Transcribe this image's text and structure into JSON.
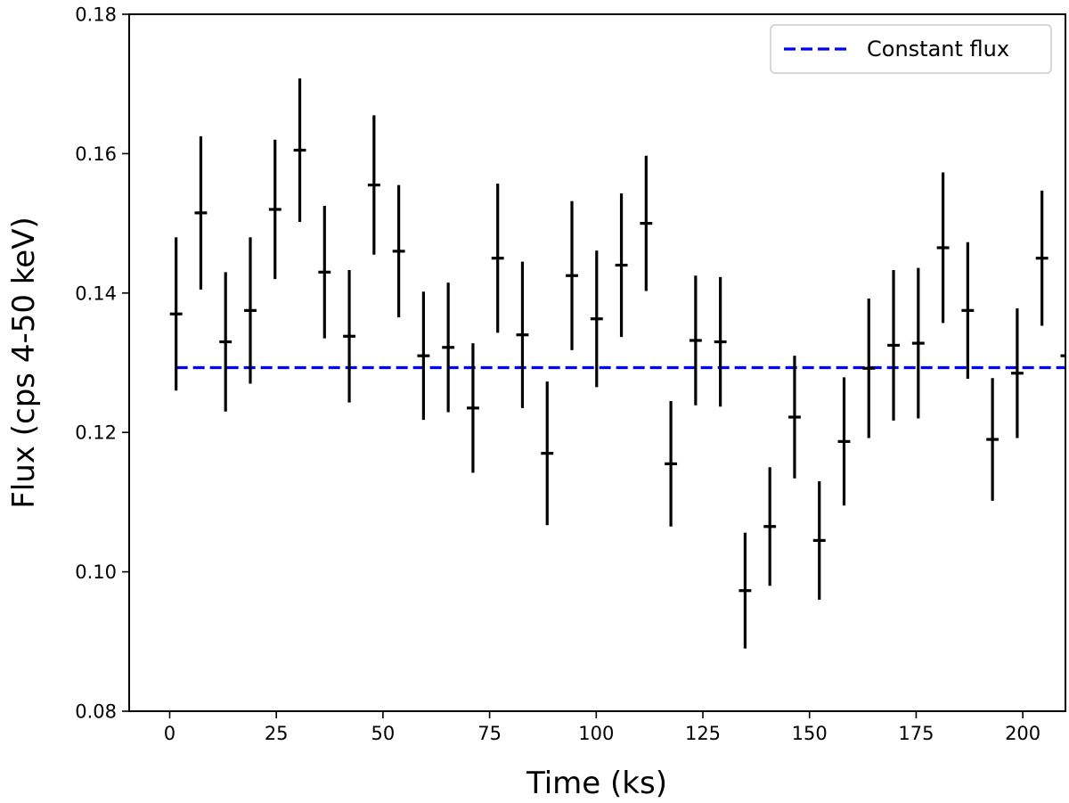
{
  "chart_data": {
    "type": "scatter",
    "title": "",
    "xlabel": "Time (ks)",
    "ylabel": "Flux (cps 4-50 keV)",
    "xlim": [
      -9.5,
      210
    ],
    "ylim": [
      0.08,
      0.18
    ],
    "xticks": [
      0,
      25,
      50,
      75,
      100,
      125,
      150,
      175,
      200
    ],
    "xtick_labels": [
      "0",
      "25",
      "50",
      "75",
      "100",
      "125",
      "150",
      "175",
      "200"
    ],
    "yticks": [
      0.08,
      0.1,
      0.12,
      0.14,
      0.16,
      0.18
    ],
    "ytick_labels": [
      "0.08",
      "0.10",
      "0.12",
      "0.14",
      "0.16",
      "0.18"
    ],
    "grid": false,
    "legend": {
      "position": "top-right",
      "entries": [
        "Constant flux"
      ]
    },
    "colors": {
      "data": "#000000",
      "constant": "#0000ff"
    },
    "series": [
      {
        "kind": "errorbar",
        "x_halfwidth": 1.45,
        "points": [
          {
            "x": 1.5,
            "y": 0.137,
            "err": 0.011
          },
          {
            "x": 7.3,
            "y": 0.1515,
            "err": 0.011
          },
          {
            "x": 13.1,
            "y": 0.133,
            "err": 0.01
          },
          {
            "x": 18.9,
            "y": 0.1375,
            "err": 0.0105
          },
          {
            "x": 24.7,
            "y": 0.152,
            "err": 0.01
          },
          {
            "x": 30.5,
            "y": 0.1605,
            "err": 0.0103
          },
          {
            "x": 36.3,
            "y": 0.143,
            "err": 0.0095
          },
          {
            "x": 42.1,
            "y": 0.1338,
            "err": 0.0095
          },
          {
            "x": 47.9,
            "y": 0.1555,
            "err": 0.01
          },
          {
            "x": 53.7,
            "y": 0.146,
            "err": 0.0095
          },
          {
            "x": 59.5,
            "y": 0.131,
            "err": 0.0092
          },
          {
            "x": 65.3,
            "y": 0.1322,
            "err": 0.0093
          },
          {
            "x": 71.1,
            "y": 0.1235,
            "err": 0.0093
          },
          {
            "x": 76.9,
            "y": 0.145,
            "err": 0.0107
          },
          {
            "x": 82.7,
            "y": 0.134,
            "err": 0.0105
          },
          {
            "x": 88.5,
            "y": 0.117,
            "err": 0.0103
          },
          {
            "x": 94.3,
            "y": 0.1425,
            "err": 0.0107
          },
          {
            "x": 100.1,
            "y": 0.1363,
            "err": 0.0098
          },
          {
            "x": 105.9,
            "y": 0.144,
            "err": 0.0103
          },
          {
            "x": 111.7,
            "y": 0.15,
            "err": 0.0097
          },
          {
            "x": 117.5,
            "y": 0.1155,
            "err": 0.009
          },
          {
            "x": 123.3,
            "y": 0.1332,
            "err": 0.0093
          },
          {
            "x": 129.1,
            "y": 0.133,
            "err": 0.0093
          },
          {
            "x": 134.9,
            "y": 0.0973,
            "err": 0.0083
          },
          {
            "x": 140.7,
            "y": 0.1065,
            "err": 0.0085
          },
          {
            "x": 146.5,
            "y": 0.1222,
            "err": 0.0088
          },
          {
            "x": 152.3,
            "y": 0.1045,
            "err": 0.0085
          },
          {
            "x": 158.1,
            "y": 0.1187,
            "err": 0.0092
          },
          {
            "x": 163.9,
            "y": 0.1292,
            "err": 0.01
          },
          {
            "x": 169.7,
            "y": 0.1325,
            "err": 0.0108
          },
          {
            "x": 175.5,
            "y": 0.1328,
            "err": 0.0108
          },
          {
            "x": 181.3,
            "y": 0.1465,
            "err": 0.0108
          },
          {
            "x": 187.1,
            "y": 0.1375,
            "err": 0.0098
          },
          {
            "x": 192.9,
            "y": 0.119,
            "err": 0.0088
          },
          {
            "x": 198.7,
            "y": 0.1285,
            "err": 0.0093
          },
          {
            "x": 204.5,
            "y": 0.145,
            "err": 0.0097
          },
          {
            "x": 210.3,
            "y": 0.131,
            "err": 0.0095
          }
        ]
      },
      {
        "kind": "hline",
        "name": "Constant flux",
        "y": 0.1293,
        "x_start": 1.5,
        "x_end": 210
      }
    ]
  }
}
